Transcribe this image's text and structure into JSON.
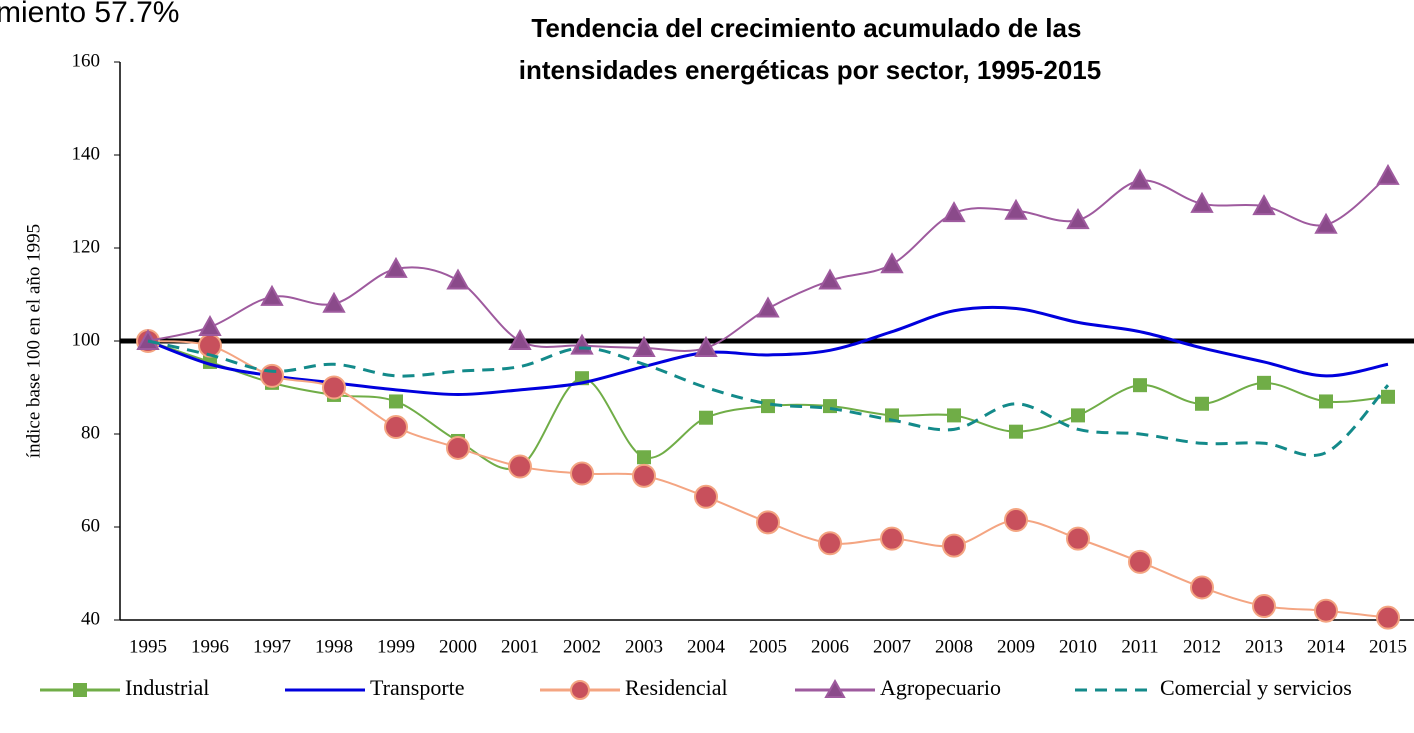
{
  "chart_data": {
    "type": "line",
    "annotation": "miento 57.7%",
    "title": "Tendencia del crecimiento acumulado de las intensidades energéticas por sector, 1995-2015",
    "ylabel": "índice base 100 en el año 1995",
    "categories": [
      "1995",
      "1996",
      "1997",
      "1998",
      "1999",
      "2000",
      "2001",
      "2002",
      "2003",
      "2004",
      "2005",
      "2006",
      "2007",
      "2008",
      "2009",
      "2010",
      "2011",
      "2012",
      "2013",
      "2014",
      "2015"
    ],
    "ylim": [
      40,
      160
    ],
    "yticks": [
      40,
      60,
      80,
      100,
      120,
      140,
      160
    ],
    "reference_line": 100,
    "legend": "bottom",
    "series": [
      {
        "name": "Industrial",
        "color": "#70ad47",
        "marker": "square",
        "values": [
          100,
          95.5,
          91,
          88.4,
          87,
          78.5,
          73,
          92,
          75,
          83.5,
          86,
          86,
          84,
          84,
          80.5,
          84,
          90.5,
          86.5,
          91,
          87,
          88
        ]
      },
      {
        "name": "Transporte",
        "color": "#0000dd",
        "marker": "none",
        "values": [
          100,
          95,
          92.5,
          91,
          89.5,
          88.5,
          89.5,
          91,
          94.5,
          97.5,
          97,
          98,
          102,
          106.5,
          107,
          104,
          102,
          98.5,
          95.5,
          92.5,
          95
        ]
      },
      {
        "name": "Residencial",
        "color": "#f4a582",
        "marker": "circle",
        "values": [
          100,
          99,
          92.5,
          90,
          81.5,
          77,
          73,
          71.5,
          71,
          66.5,
          61,
          56.5,
          57.5,
          56,
          61.5,
          57.5,
          52.5,
          47,
          43,
          42,
          40.5
        ]
      },
      {
        "name": "Agropecuario",
        "color": "#9e5a9e",
        "marker": "triangle",
        "values": [
          100,
          103,
          109.5,
          108,
          115.5,
          113,
          100,
          99,
          98.5,
          98.5,
          107,
          113,
          116.5,
          127.5,
          128,
          126,
          134.5,
          129.5,
          129,
          125,
          135.5
        ]
      },
      {
        "name": "Comercial y servicios",
        "color": "#138a8a",
        "marker": "none",
        "dash": true,
        "values": [
          100,
          97,
          93.5,
          95,
          92.5,
          93.5,
          94.5,
          98.5,
          95,
          90,
          86.5,
          85.5,
          83,
          81,
          86.5,
          81,
          80,
          78,
          78,
          76,
          90.5
        ]
      }
    ]
  }
}
